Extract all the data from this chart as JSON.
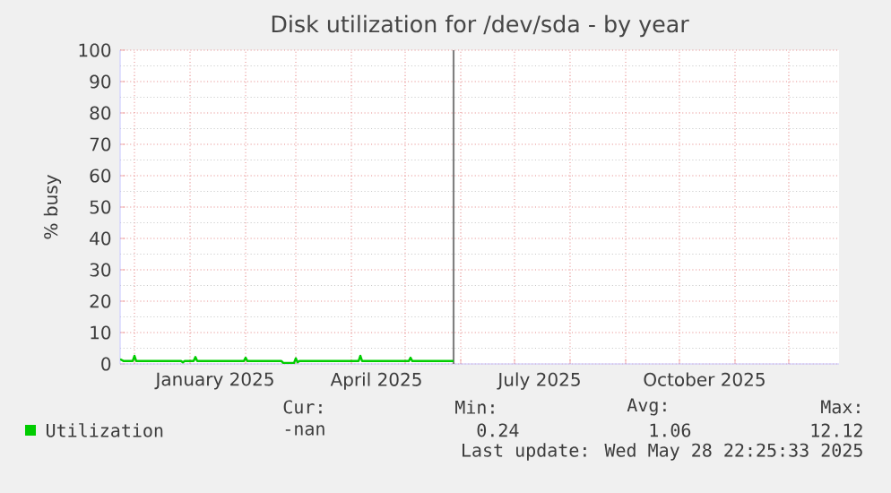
{
  "chart_data": {
    "type": "line",
    "title": "Disk utilization for /dev/sda - by year",
    "ylabel": "% busy",
    "xlim": [
      "2024-11-23",
      "2025-12-29"
    ],
    "ylim": [
      0,
      100
    ],
    "yticks": [
      0,
      10,
      20,
      30,
      40,
      50,
      60,
      70,
      80,
      90,
      100
    ],
    "xticks": [
      {
        "value": "2024-12-01",
        "label": null
      },
      {
        "value": "2025-01-01",
        "label": null
      },
      {
        "value": "2025-01-15",
        "label": "January 2025"
      },
      {
        "value": "2025-02-01",
        "label": null
      },
      {
        "value": "2025-03-01",
        "label": null
      },
      {
        "value": "2025-04-01",
        "label": null
      },
      {
        "value": "2025-04-15",
        "label": "April 2025"
      },
      {
        "value": "2025-05-01",
        "label": null
      },
      {
        "value": "2025-06-01",
        "label": null
      },
      {
        "value": "2025-07-01",
        "label": null
      },
      {
        "value": "2025-07-15",
        "label": "July 2025"
      },
      {
        "value": "2025-08-01",
        "label": null
      },
      {
        "value": "2025-09-01",
        "label": null
      },
      {
        "value": "2025-10-01",
        "label": null
      },
      {
        "value": "2025-10-15",
        "label": "October 2025"
      },
      {
        "value": "2025-11-01",
        "label": null
      },
      {
        "value": "2025-12-01",
        "label": null
      }
    ],
    "grid": true,
    "legend": "bottom left",
    "series": [
      {
        "name": "Utilization",
        "color": "#00cc00",
        "x": [
          "2024-11-23",
          "2024-11-25",
          "2024-11-30",
          "2024-12-01",
          "2024-12-02",
          "2024-12-27",
          "2024-12-28",
          "2024-12-29",
          "2025-01-03",
          "2025-01-04",
          "2025-01-05",
          "2025-01-31",
          "2025-02-01",
          "2025-02-02",
          "2025-02-21",
          "2025-02-22",
          "2025-02-28",
          "2025-03-01",
          "2025-03-02",
          "2025-03-03",
          "2025-04-05",
          "2025-04-06",
          "2025-04-07",
          "2025-05-03",
          "2025-05-04",
          "2025-05-05",
          "2025-05-28"
        ],
        "values": [
          1.5,
          0.9,
          0.9,
          2.6,
          0.9,
          0.9,
          0.5,
          0.9,
          0.9,
          2.2,
          0.9,
          0.9,
          2.0,
          0.9,
          0.9,
          0.3,
          0.3,
          1.8,
          0.5,
          0.9,
          0.9,
          2.6,
          0.9,
          0.9,
          2.0,
          0.9,
          0.9
        ]
      }
    ],
    "ref_lines": [
      {
        "axis": "x",
        "value": "2025-05-28",
        "color": "#808080"
      }
    ],
    "annotations": [
      "Cur:",
      "Min:",
      "Avg:",
      "Max:",
      "-nan",
      "0.24",
      "1.06",
      "12.12",
      "Last update: Wed May 28 22:25:33 2025"
    ]
  }
}
